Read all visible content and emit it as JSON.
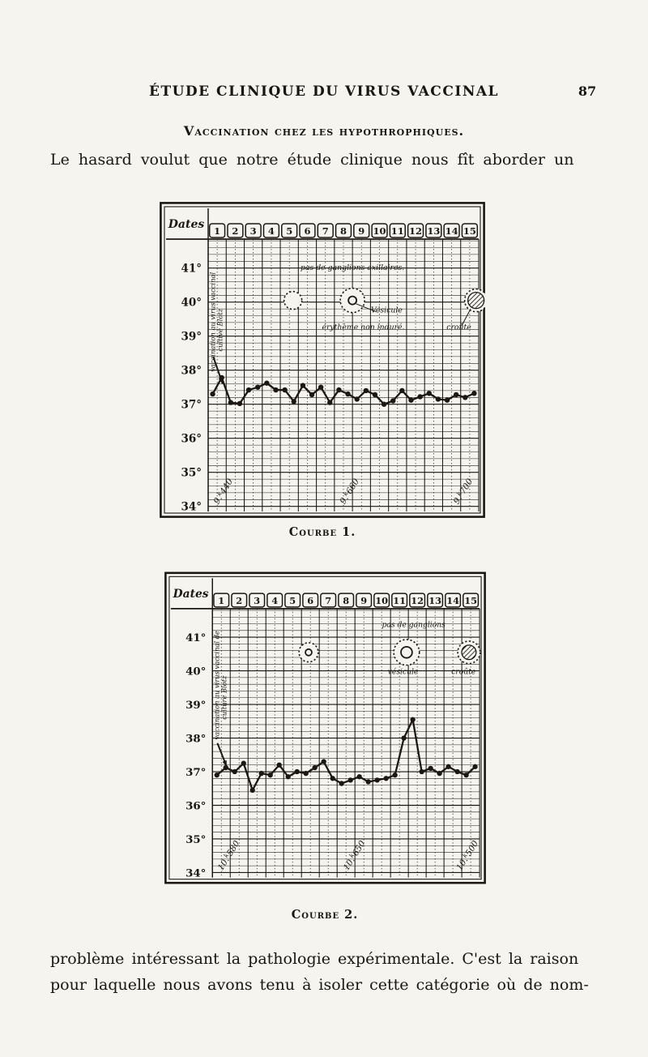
{
  "page": {
    "header_title": "ÉTUDE CLINIQUE DU VIRUS VACCINAL",
    "page_number": "87",
    "section_heading": "Vaccination chez les hypothrophiques.",
    "intro_line": "Le hasard voulut que notre étude clinique nous fît aborder un",
    "caption_1": "Courbe 1.",
    "caption_2": "Courbe 2.",
    "closing_line_1": "problème intéressant la pathologie expérimentale. C'est la raison",
    "closing_line_2": "pour laquelle nous avons tenu à isoler cette catégorie où de nom-"
  },
  "chart_data": [
    {
      "type": "line",
      "title": "Courbe 1.",
      "corner_label": "Dates",
      "categories": [
        "1",
        "2",
        "3",
        "4",
        "5",
        "6",
        "7",
        "8",
        "9",
        "10",
        "11",
        "12",
        "13",
        "14",
        "15"
      ],
      "y_tick_labels": [
        "41°",
        "40°",
        "39°",
        "38°",
        "37°",
        "36°",
        "35°",
        "34°"
      ],
      "y_tick_temps": [
        41,
        40,
        39,
        38,
        37,
        36,
        35,
        34
      ],
      "ylim": [
        33.85,
        41.85
      ],
      "readings_per_day": 2,
      "series": [
        {
          "name": "température",
          "values": [
            37.3,
            37.78,
            37.05,
            37.02,
            37.42,
            37.5,
            37.62,
            37.42,
            37.42,
            37.08,
            37.55,
            37.28,
            37.5,
            37.05,
            37.42,
            37.3,
            37.15,
            37.4,
            37.28,
            37.0,
            37.1,
            37.4,
            37.12,
            37.22,
            37.32,
            37.15,
            37.12,
            37.28,
            37.2,
            37.32
          ]
        }
      ],
      "vertical_label_lines": [
        "vaccination au virus vaccinal",
        "cultivé Blotz"
      ],
      "annotations": [
        {
          "text": "pas de ganglions axillaires.",
          "day": 8.0,
          "temp": 40.95
        },
        {
          "text": "Vésicule",
          "day": 9.9,
          "temp": 39.7
        },
        {
          "text": "érythème non induré.",
          "day": 8.6,
          "temp": 39.2
        },
        {
          "text": "croûte",
          "day": 13.9,
          "temp": 39.2
        }
      ],
      "lesions": [
        {
          "kind": "macule",
          "day": 4.7,
          "temp": 40.05,
          "r": 11
        },
        {
          "kind": "vesicule",
          "day": 8.0,
          "temp": 40.05,
          "r": 15,
          "inner_r": 5
        },
        {
          "kind": "croute",
          "day": 14.85,
          "temp": 40.05,
          "r": 14,
          "inner_r": 10
        }
      ],
      "leaders": [
        [
          [
            8.2,
            39.95
          ],
          [
            9.3,
            39.72
          ]
        ],
        [
          [
            14.55,
            39.8
          ],
          [
            14.05,
            39.3
          ]
        ]
      ],
      "arrow": {
        "from": [
          0.28,
          38.4
        ],
        "to": [
          0.8,
          37.6
        ]
      },
      "weights": [
        {
          "text": "9k440",
          "day": 0.55
        },
        {
          "text": "9k660",
          "day": 7.55
        },
        {
          "text": "9k700",
          "day": 13.85
        }
      ]
    },
    {
      "type": "line",
      "title": "Courbe 2.",
      "corner_label": "Dates",
      "categories": [
        "1",
        "2",
        "3",
        "4",
        "5",
        "6",
        "7",
        "8",
        "9",
        "10",
        "11",
        "12",
        "13",
        "14",
        "15"
      ],
      "y_tick_labels": [
        "41°",
        "40°",
        "39°",
        "38°",
        "37°",
        "36°",
        "35°",
        "34°"
      ],
      "y_tick_temps": [
        41,
        40,
        39,
        38,
        37,
        36,
        35,
        34
      ],
      "ylim": [
        33.85,
        41.85
      ],
      "readings_per_day": 2,
      "series": [
        {
          "name": "température",
          "values": [
            36.9,
            37.12,
            37.0,
            37.25,
            36.45,
            36.95,
            36.9,
            37.2,
            36.85,
            37.0,
            36.95,
            37.12,
            37.3,
            36.8,
            36.65,
            36.75,
            36.85,
            36.7,
            36.75,
            36.8,
            36.9,
            38.0,
            38.55,
            37.0,
            37.1,
            36.95,
            37.15,
            37.0,
            36.9,
            37.15
          ]
        }
      ],
      "vertical_label_lines": [
        "vaccination au virus vaccinal de",
        "culture Blotz"
      ],
      "annotations": [
        {
          "text": "pas de ganglions",
          "day": 11.3,
          "temp": 41.3
        },
        {
          "text": "vésicule",
          "day": 10.7,
          "temp": 39.9
        },
        {
          "text": "croûte",
          "day": 14.1,
          "temp": 39.9
        }
      ],
      "lesions": [
        {
          "kind": "vesicule",
          "day": 5.4,
          "temp": 40.55,
          "r": 12,
          "inner_r": 4
        },
        {
          "kind": "vesicule",
          "day": 10.9,
          "temp": 40.55,
          "r": 16,
          "inner_r": 7
        },
        {
          "kind": "croute",
          "day": 14.4,
          "temp": 40.55,
          "r": 14,
          "inner_r": 9
        }
      ],
      "leaders": [],
      "arrow": {
        "from": [
          0.28,
          37.85
        ],
        "to": [
          0.8,
          37.15
        ]
      },
      "weights": [
        {
          "text": "10k580",
          "day": 0.55
        },
        {
          "text": "10k650",
          "day": 7.6
        },
        {
          "text": "10k500",
          "day": 13.95
        }
      ]
    }
  ]
}
